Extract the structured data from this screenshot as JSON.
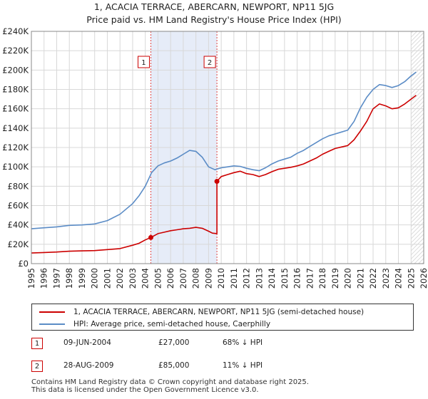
{
  "chart_data": {
    "type": "line",
    "title": "1, ACACIA TERRACE, ABERCARN, NEWPORT, NP11 5JG",
    "subtitle": "Price paid vs. HM Land Registry's House Price Index (HPI)",
    "xlim": [
      1995,
      2026
    ],
    "ylim": [
      0,
      240000
    ],
    "x_ticks": [
      "1995",
      "1996",
      "1997",
      "1998",
      "1999",
      "2000",
      "2001",
      "2002",
      "2003",
      "2004",
      "2005",
      "2006",
      "2007",
      "2008",
      "2009",
      "2010",
      "2011",
      "2012",
      "2013",
      "2014",
      "2015",
      "2016",
      "2017",
      "2018",
      "2019",
      "2020",
      "2021",
      "2022",
      "2023",
      "2024",
      "2025",
      "2026"
    ],
    "y_ticks": [
      {
        "value": 0,
        "label": "£0"
      },
      {
        "value": 20000,
        "label": "£20K"
      },
      {
        "value": 40000,
        "label": "£40K"
      },
      {
        "value": 60000,
        "label": "£60K"
      },
      {
        "value": 80000,
        "label": "£80K"
      },
      {
        "value": 100000,
        "label": "£100K"
      },
      {
        "value": 120000,
        "label": "£120K"
      },
      {
        "value": 140000,
        "label": "£140K"
      },
      {
        "value": 160000,
        "label": "£160K"
      },
      {
        "value": 180000,
        "label": "£180K"
      },
      {
        "value": 200000,
        "label": "£200K"
      },
      {
        "value": 220000,
        "label": "£220K"
      },
      {
        "value": 240000,
        "label": "£240K"
      }
    ],
    "grid": true,
    "shaded_period": [
      2004.44,
      2009.66
    ],
    "forecast_start": 2025.0,
    "series": [
      {
        "name": "1, ACACIA TERRACE, ABERCARN, NEWPORT, NP11 5JG (semi-detached house)",
        "color": "#cc0000",
        "x": [
          1995,
          1996,
          1997,
          1998,
          1999,
          2000,
          2001,
          2002,
          2003,
          2003.5,
          2004,
          2004.44,
          2004.44,
          2005,
          2005.5,
          2006,
          2006.5,
          2007,
          2007.5,
          2008,
          2008.5,
          2009,
          2009.3,
          2009.66,
          2009.66,
          2010,
          2010.5,
          2011,
          2011.5,
          2012,
          2012.5,
          2013,
          2013.5,
          2014,
          2014.5,
          2015,
          2015.5,
          2016,
          2016.5,
          2017,
          2017.5,
          2018,
          2018.5,
          2019,
          2019.5,
          2020,
          2020.5,
          2021,
          2021.5,
          2022,
          2022.5,
          2023,
          2023.5,
          2024,
          2024.5,
          2025,
          2025.4
        ],
        "values": [
          11000,
          11500,
          12000,
          12800,
          13200,
          13500,
          14500,
          15500,
          19000,
          21000,
          24500,
          27000,
          27000,
          31000,
          32500,
          34000,
          35000,
          36000,
          36500,
          37500,
          36500,
          33500,
          31500,
          31000,
          85000,
          90000,
          92000,
          94000,
          95500,
          93000,
          92000,
          90000,
          92000,
          95000,
          97500,
          98500,
          99500,
          101000,
          103000,
          106000,
          109000,
          113000,
          116000,
          119000,
          120500,
          122000,
          128000,
          137000,
          147000,
          160000,
          165000,
          163000,
          160000,
          161000,
          165000,
          170000,
          174000
        ]
      },
      {
        "name": "HPI: Average price, semi-detached house, Caerphilly",
        "color": "#5b8cc6",
        "x": [
          1995,
          1996,
          1997,
          1998,
          1999,
          2000,
          2001,
          2002,
          2003,
          2003.5,
          2004,
          2004.5,
          2005,
          2005.5,
          2006,
          2006.5,
          2007,
          2007.5,
          2008,
          2008.5,
          2009,
          2009.5,
          2010,
          2010.5,
          2011,
          2011.5,
          2012,
          2012.5,
          2013,
          2013.5,
          2014,
          2014.5,
          2015,
          2015.5,
          2016,
          2016.5,
          2017,
          2017.5,
          2018,
          2018.5,
          2019,
          2019.5,
          2020,
          2020.5,
          2021,
          2021.5,
          2022,
          2022.5,
          2023,
          2023.5,
          2024,
          2024.5,
          2025,
          2025.4
        ],
        "values": [
          36000,
          37000,
          38000,
          39500,
          40000,
          41000,
          44500,
          51000,
          62000,
          70000,
          80000,
          94000,
          101000,
          104000,
          106000,
          109000,
          113000,
          117000,
          116000,
          110000,
          100000,
          97000,
          99000,
          100000,
          101000,
          100500,
          98500,
          97000,
          96000,
          99000,
          103000,
          106000,
          108000,
          110000,
          114000,
          117000,
          121000,
          125000,
          129000,
          132000,
          134000,
          136000,
          138000,
          147000,
          161000,
          172000,
          180000,
          185000,
          184000,
          182000,
          184000,
          188000,
          194000,
          198000
        ]
      }
    ],
    "sales": [
      {
        "label": "1",
        "x": 2004.44,
        "value": 27000
      },
      {
        "label": "2",
        "x": 2009.66,
        "value": 85000
      }
    ]
  },
  "legend": {
    "property_label": "1, ACACIA TERRACE, ABERCARN, NEWPORT, NP11 5JG (semi-detached house)",
    "hpi_label": "HPI: Average price, semi-detached house, Caerphilly",
    "property_color": "#cc0000",
    "hpi_color": "#5b8cc6"
  },
  "sales_table": [
    {
      "num": "1",
      "date": "09-JUN-2004",
      "price": "£27,000",
      "hpi": "68% ↓ HPI"
    },
    {
      "num": "2",
      "date": "28-AUG-2009",
      "price": "£85,000",
      "hpi": "11% ↓ HPI"
    }
  ],
  "footer": {
    "line1": "Contains HM Land Registry data © Crown copyright and database right 2025.",
    "line2": "This data is licensed under the Open Government Licence v3.0."
  }
}
